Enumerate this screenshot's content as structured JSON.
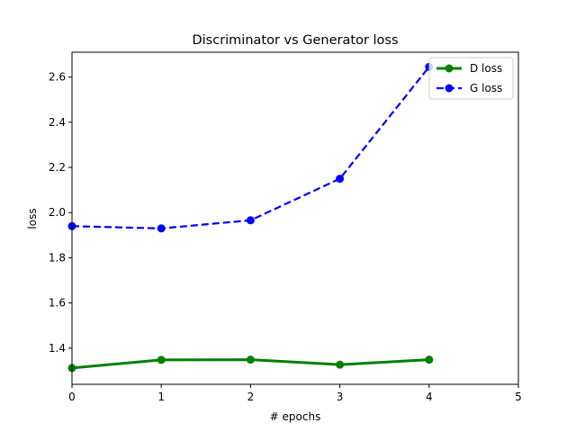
{
  "chart_data": {
    "type": "line",
    "title": "Discriminator vs Generator loss",
    "xlabel": "# epochs",
    "ylabel": "loss",
    "xlim": [
      0,
      5
    ],
    "ylim": [
      1.24,
      2.71
    ],
    "xticks": [
      0,
      1,
      2,
      3,
      4,
      5
    ],
    "yticks": [
      1.4,
      1.6,
      1.8,
      2.0,
      2.2,
      2.4,
      2.6
    ],
    "x": [
      0,
      1,
      2,
      3,
      4
    ],
    "series": [
      {
        "name": "D loss",
        "values": [
          1.312,
          1.348,
          1.349,
          1.327,
          1.349
        ],
        "color": "#008000",
        "line_style": "solid",
        "marker": "circle"
      },
      {
        "name": "G loss",
        "values": [
          1.94,
          1.93,
          1.966,
          2.15,
          2.645
        ],
        "color": "#0000ff",
        "line_style": "dashed",
        "marker": "circle"
      }
    ],
    "legend_position": "top-right",
    "grid": false
  }
}
